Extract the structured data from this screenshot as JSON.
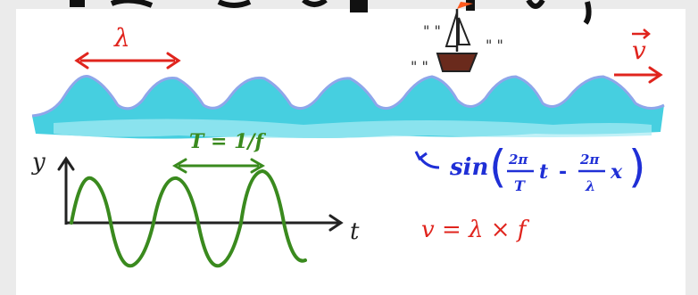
{
  "colors": {
    "background": "#ffffff",
    "outer": "#ebebeb",
    "sea": "#46cfe0",
    "sea_light": "#a7ebf3",
    "sea_edge": "#8fa6ea",
    "red": "#e0241d",
    "green": "#3a8a1e",
    "blue": "#1f2fd6",
    "ink": "#222222"
  },
  "labels": {
    "lambda_top": "λ",
    "velocity_top": "v",
    "period": "T = 1/f",
    "axis_y": "y",
    "axis_t": "t",
    "formula_prefix": "sin",
    "formula_term1_num": "2π",
    "formula_term1_den": "T",
    "formula_term1_var": "t",
    "formula_minus": "-",
    "formula_term2_num": "2π",
    "formula_term2_den": "λ",
    "formula_term2_var": "x",
    "velocity_formula": "v = λ × f",
    "quote_marks": "\" \""
  },
  "icons": {
    "boat": "sailboat-icon",
    "arrow": "arrow-icon"
  }
}
